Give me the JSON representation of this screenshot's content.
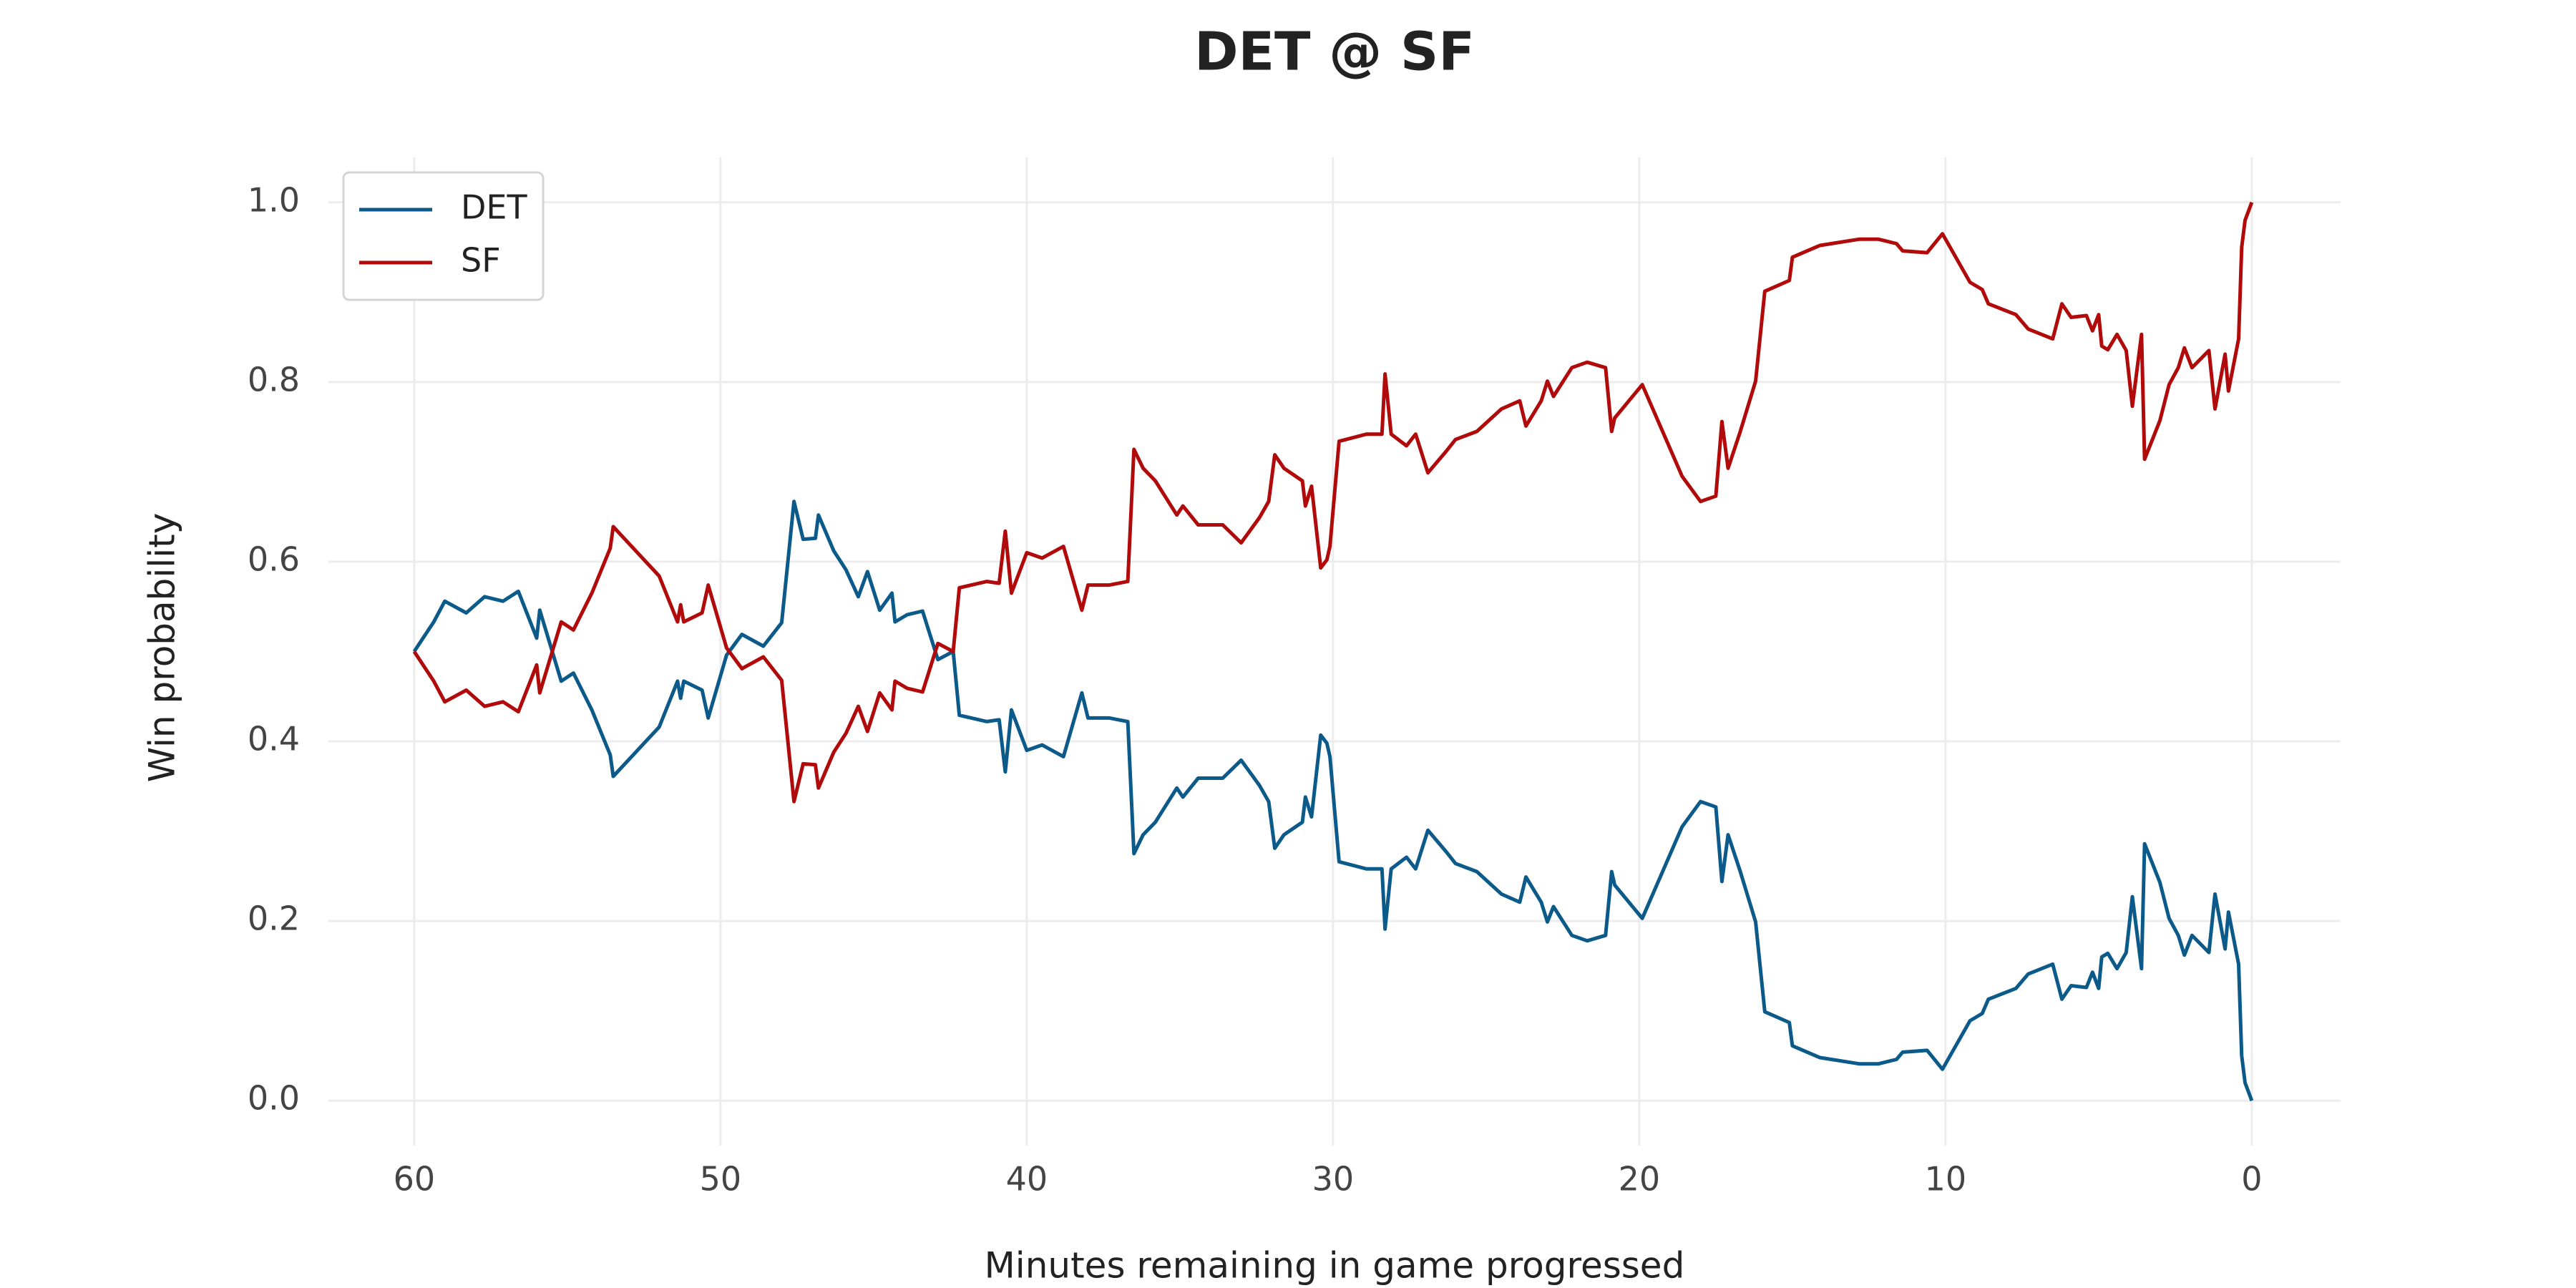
{
  "chart_data": {
    "type": "line",
    "title": "DET @ SF",
    "xlabel": "Minutes remaining in game progressed",
    "ylabel": "Win probability",
    "x": [
      60,
      59.36,
      59.0,
      58.3,
      57.7,
      57.1,
      56.6,
      56.0,
      55.9,
      55.2,
      54.8,
      54.2,
      53.6,
      53.5,
      52.0,
      51.4,
      51.3,
      51.2,
      50.6,
      50.4,
      49.8,
      49.3,
      48.6,
      48.0,
      47.6,
      47.3,
      46.9,
      46.8,
      46.3,
      45.9,
      45.5,
      45.2,
      44.8,
      44.4,
      44.3,
      43.9,
      43.4,
      42.9,
      42.4,
      42.2,
      41.3,
      40.9,
      40.7,
      40.5,
      40.0,
      39.5,
      38.8,
      38.2,
      38.0,
      37.3,
      36.7,
      36.5,
      36.2,
      35.8,
      35.1,
      34.9,
      34.4,
      33.6,
      33.0,
      32.4,
      32.1,
      31.9,
      31.6,
      31.0,
      30.9,
      30.7,
      30.4,
      30.2,
      30.1,
      29.8,
      28.9,
      28.4,
      28.3,
      28.1,
      27.6,
      27.3,
      26.9,
      26.3,
      26.0,
      25.3,
      24.5,
      23.9,
      23.7,
      23.2,
      23.0,
      22.8,
      22.2,
      21.7,
      21.1,
      20.9,
      20.8,
      19.9,
      18.6,
      18.0,
      17.5,
      17.3,
      17.1,
      16.7,
      16.2,
      15.9,
      15.1,
      15.0,
      14.1,
      12.8,
      12.2,
      11.6,
      11.4,
      10.6,
      10.1,
      9.2,
      8.8,
      8.6,
      7.7,
      7.3,
      6.5,
      6.2,
      5.9,
      5.4,
      5.2,
      5.0,
      4.9,
      4.7,
      4.4,
      4.1,
      3.9,
      3.6,
      3.5,
      3.0,
      2.7,
      2.4,
      2.2,
      1.95,
      1.4,
      1.2,
      0.87,
      0.76,
      0.43,
      0.33,
      0.22,
      0
    ],
    "series": [
      {
        "name": "DET",
        "color": "#0b5a8a",
        "values": [
          0.5,
          0.533,
          0.556,
          0.543,
          0.561,
          0.556,
          0.567,
          0.515,
          0.546,
          0.467,
          0.476,
          0.435,
          0.385,
          0.361,
          0.416,
          0.467,
          0.448,
          0.467,
          0.457,
          0.426,
          0.496,
          0.519,
          0.506,
          0.532,
          0.667,
          0.625,
          0.626,
          0.652,
          0.612,
          0.591,
          0.561,
          0.589,
          0.546,
          0.565,
          0.533,
          0.541,
          0.545,
          0.491,
          0.5,
          0.429,
          0.422,
          0.424,
          0.366,
          0.435,
          0.39,
          0.396,
          0.383,
          0.454,
          0.426,
          0.426,
          0.422,
          0.275,
          0.296,
          0.31,
          0.348,
          0.338,
          0.359,
          0.359,
          0.379,
          0.351,
          0.333,
          0.281,
          0.296,
          0.31,
          0.338,
          0.316,
          0.407,
          0.398,
          0.383,
          0.266,
          0.258,
          0.258,
          0.191,
          0.258,
          0.271,
          0.258,
          0.301,
          0.277,
          0.264,
          0.255,
          0.23,
          0.221,
          0.249,
          0.221,
          0.199,
          0.216,
          0.184,
          0.178,
          0.184,
          0.255,
          0.24,
          0.203,
          0.305,
          0.333,
          0.327,
          0.244,
          0.296,
          0.255,
          0.199,
          0.099,
          0.087,
          0.061,
          0.048,
          0.041,
          0.041,
          0.046,
          0.054,
          0.056,
          0.035,
          0.089,
          0.097,
          0.113,
          0.125,
          0.141,
          0.152,
          0.113,
          0.128,
          0.126,
          0.143,
          0.125,
          0.16,
          0.164,
          0.147,
          0.165,
          0.227,
          0.147,
          0.286,
          0.243,
          0.203,
          0.184,
          0.162,
          0.184,
          0.165,
          0.23,
          0.169,
          0.21,
          0.152,
          0.05,
          0.02,
          0.0
        ]
      },
      {
        "name": "SF",
        "color": "#b00a0a",
        "values": [
          0.5,
          0.467,
          0.444,
          0.457,
          0.439,
          0.444,
          0.433,
          0.485,
          0.454,
          0.533,
          0.524,
          0.565,
          0.615,
          0.639,
          0.584,
          0.533,
          0.552,
          0.533,
          0.543,
          0.574,
          0.504,
          0.481,
          0.494,
          0.468,
          0.333,
          0.375,
          0.374,
          0.348,
          0.388,
          0.409,
          0.439,
          0.411,
          0.454,
          0.435,
          0.467,
          0.459,
          0.455,
          0.509,
          0.5,
          0.571,
          0.578,
          0.576,
          0.634,
          0.565,
          0.61,
          0.604,
          0.617,
          0.546,
          0.574,
          0.574,
          0.578,
          0.725,
          0.704,
          0.69,
          0.652,
          0.662,
          0.641,
          0.641,
          0.621,
          0.649,
          0.667,
          0.719,
          0.704,
          0.69,
          0.662,
          0.684,
          0.593,
          0.602,
          0.617,
          0.734,
          0.742,
          0.742,
          0.809,
          0.742,
          0.729,
          0.742,
          0.699,
          0.723,
          0.736,
          0.745,
          0.77,
          0.779,
          0.751,
          0.779,
          0.801,
          0.784,
          0.816,
          0.822,
          0.816,
          0.745,
          0.76,
          0.797,
          0.695,
          0.667,
          0.673,
          0.756,
          0.704,
          0.745,
          0.801,
          0.901,
          0.913,
          0.939,
          0.952,
          0.959,
          0.959,
          0.954,
          0.946,
          0.944,
          0.965,
          0.911,
          0.903,
          0.887,
          0.875,
          0.859,
          0.848,
          0.887,
          0.872,
          0.874,
          0.857,
          0.875,
          0.84,
          0.836,
          0.853,
          0.835,
          0.773,
          0.853,
          0.714,
          0.757,
          0.797,
          0.816,
          0.838,
          0.816,
          0.835,
          0.77,
          0.831,
          0.79,
          0.848,
          0.95,
          0.98,
          1.0
        ]
      }
    ],
    "xlim": [
      62.8,
      -2.9
    ],
    "xticks": [
      60,
      50,
      40,
      30,
      20,
      10,
      0
    ],
    "ylim": [
      -0.05,
      1.05
    ],
    "yticks": [
      {
        "value": 0,
        "label": "0.0"
      },
      0.2,
      0.4,
      0.6,
      0.8,
      {
        "value": 1,
        "label": "1.0"
      }
    ],
    "grid": true,
    "legend": "upper left"
  }
}
